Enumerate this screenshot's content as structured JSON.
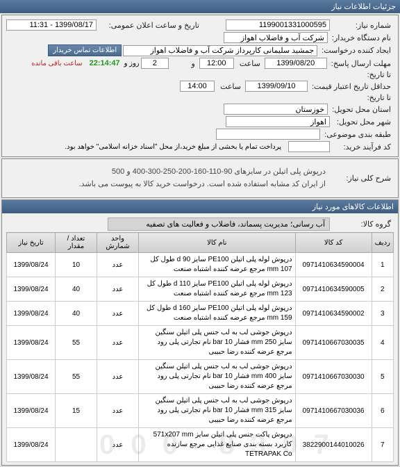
{
  "header": {
    "title": "جزئیات اطلاعات نیاز"
  },
  "general": {
    "need_no_label": "شماره نیاز:",
    "need_no": "1199001331000595",
    "announce_label": "تاریخ و ساعت اعلان عمومی:",
    "announce": "1399/08/17 - 11:31",
    "buyer_label": "نام دستگاه خریدار:",
    "buyer": "شرکت آب و فاضلاب اهواز",
    "creator_label": "ایجاد کننده درخواست:",
    "creator": "جمشید سلیمانی کارپرداز شرکت آب و فاضلاب اهواز",
    "contact_btn": "اطلاعات تماس خریدار",
    "deadline_label": "مهلت ارسال پاسخ:",
    "deadline_to_label": "تا تاریخ:",
    "deadline_date": "1399/08/20",
    "deadline_time": "12:00",
    "and_label": "و",
    "days": "2",
    "day_word": "روز و",
    "timer": "22:14:47",
    "hours_left": "ساعت باقی مانده",
    "validity_label": "حداقل تاریخ اعتبار قیمت:",
    "validity_to_label": "تا تاریخ:",
    "validity_date": "1399/09/10",
    "validity_time": "14:00",
    "sat_label": "ساعت",
    "province_label": "استان محل تحویل:",
    "province": "خوزستان",
    "city_label": "شهر محل تحویل:",
    "city": "اهواز",
    "budget_label": "طبقه بندی موضوعی:",
    "budget": "",
    "process_label": "کد فرآیند خرید:",
    "process_note": "پرداخت تمام یا بخشی از مبلغ خرید،از محل \"اسناد خزانه اسلامی\" خواهد بود."
  },
  "desc": {
    "title": "شرح کلی نیاز:",
    "line1": "درپوش پلی اتیلن در سایزهای 90-110-160-200-250-300-400 و 500",
    "line2": "از ایران کد مشابه استفاده شده است. درخواست خرید کالا به پیوست می باشد."
  },
  "items_panel": {
    "title": "اطلاعات کالاهای مورد نیاز"
  },
  "group": {
    "label": "گروه کالا:",
    "value": "آب رسانی؛ مدیریت پسماند، فاضلاب و فعالیت های تصفیه"
  },
  "columns": {
    "idx": "ردیف",
    "code": "کد کالا",
    "name": "نام کالا",
    "unit": "واحد شمارش",
    "qty": "تعداد / مقدار",
    "date": "تاریخ نیاز"
  },
  "rows": [
    {
      "idx": "1",
      "code": "0971410634590004",
      "name": "درپوش لوله پلی اتیلن PE100 سایز d 90 طول کل mm 107 مرجع عرضه کننده اشتباه صنعت",
      "unit": "عدد",
      "qty": "10",
      "date": "1399/08/24"
    },
    {
      "idx": "2",
      "code": "0971410634590005",
      "name": "درپوش لوله پلی اتیلن PE100 سایز d 110 طول کل mm 123 مرجع عرضه کننده اشتباه صنعت",
      "unit": "عدد",
      "qty": "40",
      "date": "1399/08/24"
    },
    {
      "idx": "3",
      "code": "0971410634590002",
      "name": "درپوش لوله پلی اتیلن PE100 سایز d 160 طول کل mm 159 مرجع عرضه کننده اشتباه صنعت",
      "unit": "عدد",
      "qty": "40",
      "date": "1399/08/24"
    },
    {
      "idx": "4",
      "code": "0971410667030035",
      "name": "درپوش جوشی لب به لب جنس پلی اتیلن سنگین سایز 250 mm فشار bar 10 نام تجارتی پلی رود مرجع عرضه کننده رضا حبیبی",
      "unit": "عدد",
      "qty": "55",
      "date": "1399/08/24"
    },
    {
      "idx": "5",
      "code": "0971410667030030",
      "name": "درپوش جوشی لب به لب جنس پلی اتیلن سنگین سایز 400 mm فشار bar 10 نام تجارتی پلی رود مرجع عرضه کننده رضا حبیبی",
      "unit": "عدد",
      "qty": "55",
      "date": "1399/08/24"
    },
    {
      "idx": "6",
      "code": "0971410667030036",
      "name": "درپوش جوشی لب به لب جنس پلی اتیلن سنگین سایز 315 mm فشار bar 10 نام تجارتی پلی رود مرجع عرضه کننده رضا حبیبی",
      "unit": "عدد",
      "qty": "15",
      "date": "1399/08/24"
    },
    {
      "idx": "7",
      "code": "3822900144010026",
      "name": "درپوش پاکت جنس پلی اتیلن سایز 571x207 mm کاربرد بسته بندی صنایع غذایی مرجع سازنده TETRAPAK Co",
      "unit": "عدد",
      "qty": "",
      "date": "1399/08/24"
    }
  ],
  "watermark": "0 0 0 - 8 3 0 7"
}
